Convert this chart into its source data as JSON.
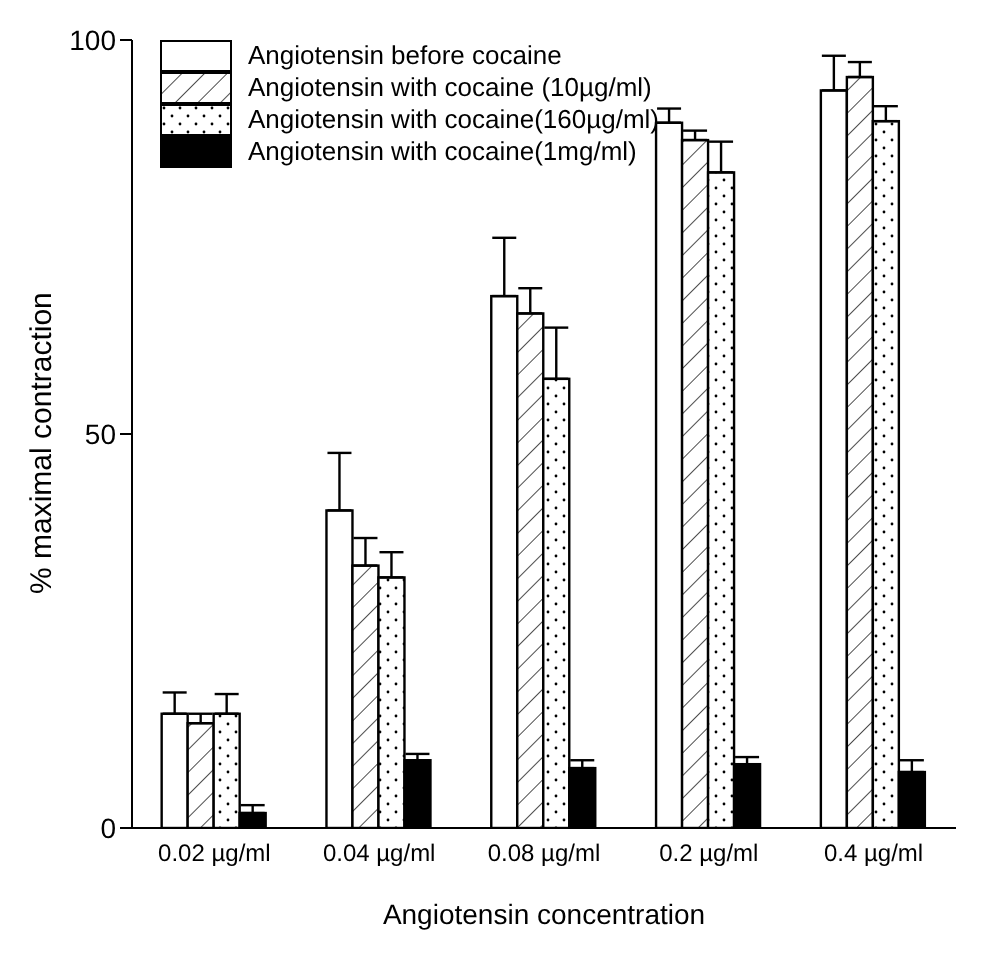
{
  "chart_data": {
    "type": "bar",
    "xlabel": "Angiotensin concentration",
    "ylabel": "% maximal contraction",
    "categories": [
      "0.02 µg/ml",
      "0.04 µg/ml",
      "0.08 µg/ml",
      "0.2 µg/ml",
      "0.4 µg/ml"
    ],
    "series": [
      {
        "name": "Angiotensin before cocaine",
        "color": "#ffffff",
        "values": [
          14.5,
          40.3,
          67.5,
          89.5,
          93.6
        ],
        "errors": [
          2.7,
          7.3,
          7.4,
          1.8,
          4.4
        ]
      },
      {
        "name": "Angiotensin with cocaine (10µg/ml)",
        "color": "#ffffff",
        "values": [
          13.3,
          33.3,
          65.3,
          87.3,
          95.3
        ],
        "errors": [
          1.2,
          3.5,
          3.2,
          1.2,
          1.9
        ]
      },
      {
        "name": "Angiotensin with cocaine(160µg/ml)",
        "color": "#ffffff",
        "values": [
          14.5,
          31.8,
          57,
          83.2,
          89.7
        ],
        "errors": [
          2.5,
          3.2,
          6.5,
          3.9,
          1.9
        ]
      },
      {
        "name": "Angiotensin with cocaine(1mg/ml)",
        "color": "#000000",
        "values": [
          1.9,
          8.6,
          7.6,
          8.1,
          7.1
        ],
        "errors": [
          1,
          0.8,
          1,
          0.9,
          1.5
        ]
      }
    ],
    "ylim": [
      0,
      100
    ],
    "yticks": [
      0,
      50,
      100
    ],
    "grid": false,
    "legend": "top left"
  }
}
